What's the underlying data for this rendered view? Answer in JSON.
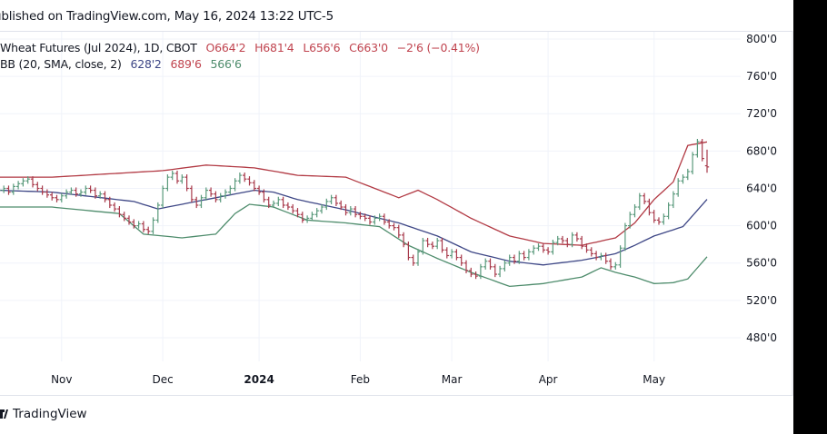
{
  "published": "ublished on TradingView.com, May 16, 2024 13:22 UTC-5",
  "legend": {
    "symbol": "Wheat Futures (Jul 2024), 1D, CBOT",
    "open": "O664'2",
    "high": "H681'4",
    "low": "L656'6",
    "close": "C663'0",
    "change": "−2'6 (−0.41%)",
    "bb_label": "BB (20, SMA, close, 2)",
    "bb_basis": "628'2",
    "bb_upper": "689'6",
    "bb_lower": "566'6"
  },
  "footer": {
    "brand": "TradingView"
  },
  "colors": {
    "up": "#5a9a7c",
    "down": "#a83a4b",
    "upper_band": "#b23a44",
    "basis": "#3e4786",
    "lower_band": "#4e8c6c",
    "legend_price": "#c0444f",
    "grid": "#f0f3fa",
    "border": "#e0e3eb"
  },
  "chart_data": {
    "type": "ohlc-bar",
    "ylim": [
      460,
      810
    ],
    "yticks": [
      800,
      760,
      720,
      680,
      640,
      600,
      560,
      520,
      480
    ],
    "ytick_labels": [
      "800'0",
      "760'0",
      "720'0",
      "680'0",
      "640'0",
      "600'0",
      "560'0",
      "520'0",
      "480'0"
    ],
    "xticks": [
      {
        "label": "Nov",
        "bar": 13,
        "bold": false
      },
      {
        "label": "Dec",
        "bar": 34,
        "bold": false
      },
      {
        "label": "2024",
        "bar": 54,
        "bold": true
      },
      {
        "label": "Feb",
        "bar": 75,
        "bold": false
      },
      {
        "label": "Mar",
        "bar": 94,
        "bold": false
      },
      {
        "label": "Apr",
        "bar": 114,
        "bold": false
      },
      {
        "label": "May",
        "bar": 136,
        "bold": false
      }
    ],
    "closes": [
      638,
      640,
      636,
      642,
      645,
      648,
      650,
      644,
      640,
      636,
      633,
      630,
      628,
      632,
      636,
      638,
      634,
      636,
      640,
      638,
      632,
      634,
      628,
      622,
      618,
      612,
      608,
      604,
      600,
      602,
      596,
      594,
      606,
      622,
      640,
      652,
      656,
      648,
      652,
      640,
      628,
      622,
      630,
      638,
      634,
      628,
      632,
      636,
      640,
      648,
      654,
      650,
      646,
      640,
      636,
      628,
      622,
      624,
      628,
      622,
      620,
      616,
      612,
      606,
      608,
      612,
      616,
      620,
      626,
      630,
      624,
      620,
      614,
      618,
      612,
      610,
      608,
      604,
      608,
      610,
      604,
      600,
      598,
      590,
      580,
      566,
      560,
      572,
      584,
      580,
      578,
      584,
      574,
      568,
      572,
      566,
      560,
      552,
      548,
      546,
      556,
      562,
      556,
      548,
      554,
      560,
      566,
      562,
      570,
      566,
      572,
      576,
      578,
      574,
      572,
      582,
      586,
      584,
      580,
      590,
      586,
      578,
      574,
      570,
      566,
      568,
      562,
      556,
      558,
      576,
      600,
      612,
      620,
      632,
      626,
      614,
      606,
      604,
      610,
      622,
      634,
      648,
      652,
      658,
      676,
      690,
      672,
      663
    ],
    "last_bar": {
      "open": 664.25,
      "high": 681.5,
      "low": 656.75,
      "close": 663.0
    },
    "bollinger": {
      "upper": [
        [
          0,
          652
        ],
        [
          11,
          652
        ],
        [
          34,
          659
        ],
        [
          43,
          665
        ],
        [
          53,
          662
        ],
        [
          62,
          654
        ],
        [
          72,
          652
        ],
        [
          79,
          638
        ],
        [
          83,
          630
        ],
        [
          87,
          638
        ],
        [
          91,
          628
        ],
        [
          98,
          608
        ],
        [
          106,
          589
        ],
        [
          113,
          581
        ],
        [
          121,
          579
        ],
        [
          128,
          587
        ],
        [
          132,
          603
        ],
        [
          136,
          628
        ],
        [
          140,
          647
        ],
        [
          143,
          686
        ],
        [
          147,
          689.75
        ]
      ],
      "basis": [
        [
          0,
          638
        ],
        [
          11,
          636
        ],
        [
          28,
          626
        ],
        [
          33,
          618
        ],
        [
          43,
          628
        ],
        [
          53,
          638
        ],
        [
          57,
          636
        ],
        [
          62,
          628
        ],
        [
          72,
          617
        ],
        [
          79,
          608
        ],
        [
          83,
          603
        ],
        [
          91,
          589
        ],
        [
          98,
          572
        ],
        [
          106,
          562
        ],
        [
          113,
          558
        ],
        [
          121,
          563
        ],
        [
          128,
          570
        ],
        [
          132,
          579
        ],
        [
          136,
          589
        ],
        [
          142,
          599
        ],
        [
          147,
          628.25
        ]
      ],
      "lower": [
        [
          0,
          620
        ],
        [
          11,
          620
        ],
        [
          25,
          613
        ],
        [
          30,
          591
        ],
        [
          38,
          587
        ],
        [
          45,
          591
        ],
        [
          49,
          613
        ],
        [
          52,
          623
        ],
        [
          57,
          620
        ],
        [
          64,
          606
        ],
        [
          72,
          603
        ],
        [
          79,
          599
        ],
        [
          85,
          579
        ],
        [
          91,
          565
        ],
        [
          98,
          550
        ],
        [
          106,
          535
        ],
        [
          113,
          538
        ],
        [
          121,
          545
        ],
        [
          125,
          555
        ],
        [
          128,
          550
        ],
        [
          132,
          545
        ],
        [
          136,
          538
        ],
        [
          140,
          539
        ],
        [
          143,
          543
        ],
        [
          147,
          566.75
        ]
      ]
    }
  }
}
